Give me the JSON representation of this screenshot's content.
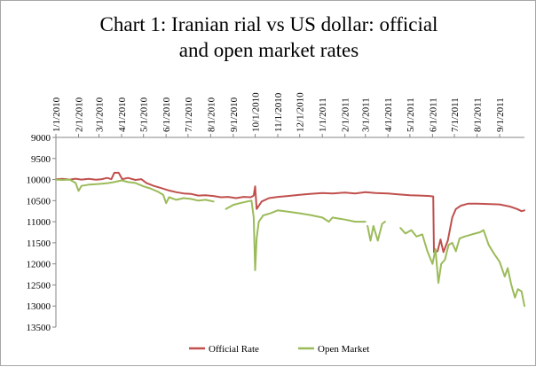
{
  "chart_data": {
    "type": "line",
    "title": "Chart 1: Iranian rial vs US dollar: official and open market rates",
    "title_lines": [
      "Chart 1: Iranian rial vs US dollar: official",
      "and open market rates"
    ],
    "xlabel": "",
    "ylabel": "",
    "x_ticks": [
      "1/1/2010",
      "2/1/2010",
      "3/1/2010",
      "4/1/2010",
      "5/1/2010",
      "6/1/2010",
      "7/1/2010",
      "8/1/2010",
      "9/1/2010",
      "10/1/2010",
      "11/1/2010",
      "12/1/2010",
      "1/1/2011",
      "2/1/2011",
      "3/1/2011",
      "4/1/2011",
      "5/1/2011",
      "6/1/2011",
      "7/1/2011",
      "8/1/2011",
      "9/1/2011"
    ],
    "x_range": [
      "2010-01-01",
      "2011-10-05"
    ],
    "y_ticks": [
      9000,
      9500,
      10000,
      10500,
      11000,
      11500,
      12000,
      12500,
      13000,
      13500
    ],
    "ylim": [
      9000,
      13500
    ],
    "y_reversed": true,
    "grid": false,
    "legend_position": "bottom",
    "series": [
      {
        "name": "Official Rate",
        "color": "#c0504d",
        "points": [
          [
            "2010-01-01",
            9995
          ],
          [
            "2010-01-10",
            9985
          ],
          [
            "2010-01-20",
            10000
          ],
          [
            "2010-01-28",
            9980
          ],
          [
            "2010-02-05",
            10000
          ],
          [
            "2010-02-15",
            9985
          ],
          [
            "2010-02-25",
            10005
          ],
          [
            "2010-03-05",
            9990
          ],
          [
            "2010-03-12",
            9960
          ],
          [
            "2010-03-18",
            9990
          ],
          [
            "2010-03-22",
            9840
          ],
          [
            "2010-03-28",
            9840
          ],
          [
            "2010-04-02",
            9990
          ],
          [
            "2010-04-10",
            9960
          ],
          [
            "2010-04-20",
            10010
          ],
          [
            "2010-04-28",
            9990
          ],
          [
            "2010-05-05",
            10080
          ],
          [
            "2010-05-15",
            10150
          ],
          [
            "2010-05-25",
            10200
          ],
          [
            "2010-06-05",
            10260
          ],
          [
            "2010-06-15",
            10300
          ],
          [
            "2010-06-25",
            10330
          ],
          [
            "2010-07-05",
            10340
          ],
          [
            "2010-07-15",
            10380
          ],
          [
            "2010-07-25",
            10370
          ],
          [
            "2010-08-05",
            10390
          ],
          [
            "2010-08-15",
            10420
          ],
          [
            "2010-08-25",
            10410
          ],
          [
            "2010-09-05",
            10440
          ],
          [
            "2010-09-15",
            10410
          ],
          [
            "2010-09-25",
            10420
          ],
          [
            "2010-09-29",
            10380
          ],
          [
            "2010-10-01",
            10160
          ],
          [
            "2010-10-03",
            10700
          ],
          [
            "2010-10-10",
            10520
          ],
          [
            "2010-10-20",
            10440
          ],
          [
            "2010-11-01",
            10410
          ],
          [
            "2010-11-15",
            10390
          ],
          [
            "2010-12-01",
            10360
          ],
          [
            "2010-12-15",
            10340
          ],
          [
            "2011-01-01",
            10320
          ],
          [
            "2011-01-15",
            10330
          ],
          [
            "2011-02-01",
            10310
          ],
          [
            "2011-02-15",
            10330
          ],
          [
            "2011-03-01",
            10300
          ],
          [
            "2011-03-15",
            10320
          ],
          [
            "2011-04-01",
            10330
          ],
          [
            "2011-04-15",
            10350
          ],
          [
            "2011-05-01",
            10370
          ],
          [
            "2011-05-15",
            10380
          ],
          [
            "2011-05-28",
            10390
          ],
          [
            "2011-06-02",
            10400
          ],
          [
            "2011-06-03",
            11720
          ],
          [
            "2011-06-08",
            11700
          ],
          [
            "2011-06-12",
            11420
          ],
          [
            "2011-06-16",
            11720
          ],
          [
            "2011-06-22",
            11450
          ],
          [
            "2011-06-28",
            10900
          ],
          [
            "2011-07-03",
            10700
          ],
          [
            "2011-07-10",
            10620
          ],
          [
            "2011-07-20",
            10570
          ],
          [
            "2011-08-01",
            10570
          ],
          [
            "2011-08-15",
            10580
          ],
          [
            "2011-09-01",
            10590
          ],
          [
            "2011-09-15",
            10640
          ],
          [
            "2011-09-25",
            10700
          ],
          [
            "2011-10-01",
            10750
          ],
          [
            "2011-10-05",
            10730
          ]
        ]
      },
      {
        "name": "Open Market",
        "color": "#9bbb59",
        "segments": [
          [
            [
              "2010-01-01",
              10000
            ],
            [
              "2010-01-10",
              10010
            ],
            [
              "2010-01-20",
              10000
            ],
            [
              "2010-01-28",
              10080
            ],
            [
              "2010-02-01",
              10270
            ],
            [
              "2010-02-05",
              10150
            ],
            [
              "2010-02-15",
              10120
            ],
            [
              "2010-02-25",
              10110
            ],
            [
              "2010-03-05",
              10100
            ],
            [
              "2010-03-15",
              10080
            ],
            [
              "2010-03-22",
              10060
            ],
            [
              "2010-04-01",
              10020
            ],
            [
              "2010-04-10",
              10060
            ],
            [
              "2010-04-20",
              10080
            ],
            [
              "2010-05-01",
              10160
            ],
            [
              "2010-05-10",
              10210
            ],
            [
              "2010-05-20",
              10280
            ],
            [
              "2010-05-28",
              10360
            ],
            [
              "2010-06-01",
              10560
            ],
            [
              "2010-06-05",
              10420
            ],
            [
              "2010-06-15",
              10480
            ],
            [
              "2010-06-25",
              10440
            ],
            [
              "2010-07-05",
              10460
            ],
            [
              "2010-07-15",
              10500
            ],
            [
              "2010-07-25",
              10480
            ],
            [
              "2010-08-05",
              10520
            ]
          ],
          [
            [
              "2010-08-22",
              10700
            ],
            [
              "2010-09-01",
              10600
            ],
            [
              "2010-09-10",
              10560
            ],
            [
              "2010-09-20",
              10520
            ],
            [
              "2010-09-26",
              10500
            ],
            [
              "2010-09-29",
              10900
            ],
            [
              "2010-10-01",
              12150
            ],
            [
              "2010-10-03",
              11400
            ],
            [
              "2010-10-06",
              11000
            ],
            [
              "2010-10-12",
              10850
            ],
            [
              "2010-10-22",
              10800
            ],
            [
              "2010-11-01",
              10730
            ],
            [
              "2010-11-15",
              10760
            ],
            [
              "2010-12-01",
              10800
            ],
            [
              "2010-12-15",
              10840
            ],
            [
              "2011-01-01",
              10900
            ],
            [
              "2011-01-10",
              11000
            ],
            [
              "2011-01-15",
              10900
            ],
            [
              "2011-02-01",
              10950
            ],
            [
              "2011-02-15",
              11000
            ],
            [
              "2011-03-01",
              11000
            ]
          ],
          [
            [
              "2011-03-04",
              11100
            ],
            [
              "2011-03-08",
              11450
            ],
            [
              "2011-03-12",
              11100
            ],
            [
              "2011-03-18",
              11450
            ],
            [
              "2011-03-24",
              11050
            ],
            [
              "2011-03-28",
              11000
            ]
          ],
          [
            [
              "2011-04-18",
              11150
            ],
            [
              "2011-04-25",
              11280
            ],
            [
              "2011-05-03",
              11200
            ],
            [
              "2011-05-10",
              11350
            ],
            [
              "2011-05-18",
              11300
            ],
            [
              "2011-05-25",
              11700
            ],
            [
              "2011-06-01",
              12000
            ],
            [
              "2011-06-05",
              11650
            ],
            [
              "2011-06-09",
              12450
            ],
            [
              "2011-06-13",
              12000
            ],
            [
              "2011-06-18",
              11900
            ],
            [
              "2011-06-23",
              11550
            ],
            [
              "2011-06-28",
              11500
            ],
            [
              "2011-07-03",
              11700
            ],
            [
              "2011-07-08",
              11400
            ],
            [
              "2011-07-15",
              11350
            ],
            [
              "2011-07-25",
              11300
            ],
            [
              "2011-08-05",
              11250
            ],
            [
              "2011-08-10",
              11200
            ],
            [
              "2011-08-17",
              11550
            ],
            [
              "2011-08-24",
              11750
            ],
            [
              "2011-09-01",
              11950
            ],
            [
              "2011-09-08",
              12300
            ],
            [
              "2011-09-12",
              12100
            ],
            [
              "2011-09-17",
              12500
            ],
            [
              "2011-09-22",
              12800
            ],
            [
              "2011-09-26",
              12600
            ],
            [
              "2011-10-01",
              12650
            ],
            [
              "2011-10-05",
              13000
            ]
          ]
        ]
      }
    ]
  }
}
